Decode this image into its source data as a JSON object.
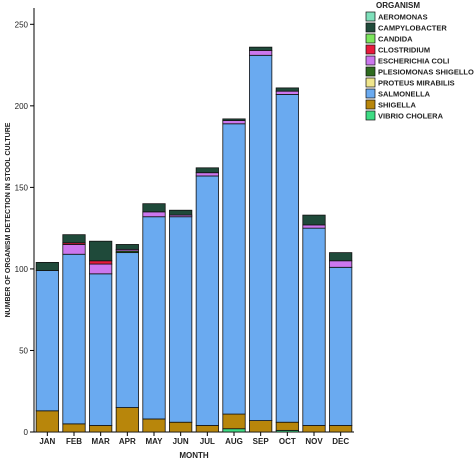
{
  "chart_data": {
    "type": "bar",
    "stacked": true,
    "xlabel": "MONTH",
    "ylabel": "NUMBER OF ORGANISM DETECTION IN STOOL CULTURE",
    "ylim": [
      0,
      260
    ],
    "yticks": [
      0,
      50,
      100,
      150,
      200,
      250
    ],
    "grid": false,
    "legend_title": "ORGANISM",
    "legend_position": "top-right",
    "categories": [
      "JAN",
      "FEB",
      "MAR",
      "APR",
      "MAY",
      "JUN",
      "JUL",
      "AUG",
      "SEP",
      "OCT",
      "NOV",
      "DEC"
    ],
    "series": [
      {
        "name": "VIBRIO CHOLERA",
        "color": "#3ddc84",
        "values": [
          0,
          0,
          0,
          0,
          0,
          0,
          0,
          2,
          0,
          1,
          0,
          0
        ]
      },
      {
        "name": "SHIGELLA",
        "color": "#b8860b",
        "values": [
          13,
          5,
          4,
          15,
          8,
          6,
          4,
          9,
          7,
          5,
          4,
          4
        ]
      },
      {
        "name": "SALMONELLA",
        "color": "#6aaaf0",
        "values": [
          86,
          104,
          93,
          95,
          124,
          126,
          153,
          178,
          224,
          201,
          121,
          97
        ]
      },
      {
        "name": "PROTEUS MIRABILIS",
        "color": "#f0e68c",
        "values": [
          0,
          0,
          0,
          0,
          0,
          0,
          0,
          0,
          0,
          0,
          0,
          0
        ]
      },
      {
        "name": "PLESIOMONAS SHIGELLOIDES",
        "color": "#2e6b1f",
        "values": [
          0,
          0,
          0,
          1,
          0,
          0,
          0,
          0,
          0,
          0,
          0,
          0
        ]
      },
      {
        "name": "ESCHERICHIA COLI",
        "color": "#cc77ee",
        "values": [
          0,
          6,
          6,
          1,
          3,
          1,
          2,
          2,
          3,
          2,
          2,
          4
        ]
      },
      {
        "name": "CLOSTRIDIUM",
        "color": "#e8193c",
        "values": [
          0,
          1,
          2,
          0,
          0,
          0,
          0,
          0,
          0,
          0,
          0,
          0
        ]
      },
      {
        "name": "CANDIDA",
        "color": "#7be65c",
        "values": [
          0,
          0,
          0,
          0,
          0,
          0,
          0,
          0,
          0,
          0,
          0,
          0
        ]
      },
      {
        "name": "CAMPYLOBACTER",
        "color": "#1f4a3a",
        "values": [
          5,
          5,
          12,
          3,
          5,
          3,
          3,
          1,
          2,
          2,
          6,
          5
        ]
      },
      {
        "name": "AEROMONAS",
        "color": "#7fe0bb",
        "values": [
          0,
          0,
          0,
          0,
          0,
          0,
          0,
          0,
          0,
          0,
          0,
          0
        ]
      }
    ],
    "legend_order": [
      "AEROMONAS",
      "CAMPYLOBACTER",
      "CANDIDA",
      "CLOSTRIDIUM",
      "ESCHERICHIA COLI",
      "PLESIOMONAS SHIGELLOIDES",
      "PROTEUS MIRABILIS",
      "SALMONELLA",
      "SHIGELLA",
      "VIBRIO CHOLERA"
    ],
    "legend_display_names": [
      "AEROMONAS",
      "CAMPYLOBACTER",
      "CANDIDA",
      "CLOSTRIDIUM",
      "ESCHERICHIA COLI",
      "PLESIOMONAS SHIGELLOIDE",
      "PROTEUS MIRABILIS",
      "SALMONELLA",
      "SHIGELLA",
      "VIBRIO CHOLERA"
    ]
  }
}
